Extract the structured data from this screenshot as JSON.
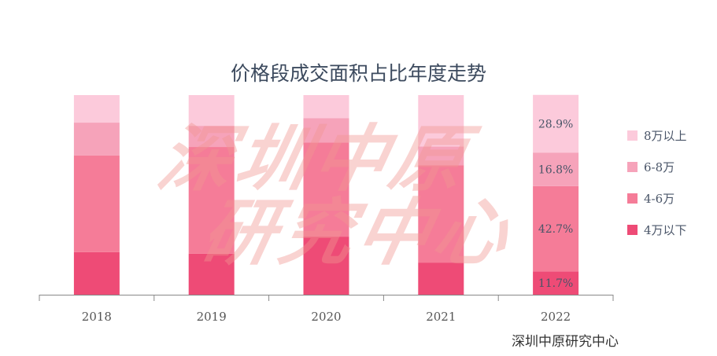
{
  "chart_data": {
    "type": "bar",
    "stacked": true,
    "title": "价格段成交面积占比年度走势",
    "categories": [
      "2018",
      "2019",
      "2020",
      "2021",
      "2022"
    ],
    "ylim": [
      0,
      100
    ],
    "legend_position": "right",
    "series": [
      {
        "name": "4万以下",
        "color": "#ee4b76",
        "values": [
          21.3,
          20.5,
          29.1,
          16.1,
          11.7
        ]
      },
      {
        "name": "4-6万",
        "color": "#f57c98",
        "values": [
          48.4,
          53.5,
          47.2,
          48.8,
          42.7
        ]
      },
      {
        "name": "6-8万",
        "color": "#f6a3ba",
        "values": [
          16.5,
          10.6,
          12.2,
          9.4,
          16.8
        ]
      },
      {
        "name": "8万以上",
        "color": "#fccadb",
        "values": [
          13.8,
          15.4,
          11.5,
          25.7,
          28.9
        ]
      }
    ],
    "data_labels": {
      "2022": [
        "11.7%",
        "42.7%",
        "16.8%",
        "28.9%"
      ]
    }
  },
  "watermark": "深圳中原研究中心",
  "source": "深圳中原研究中心"
}
